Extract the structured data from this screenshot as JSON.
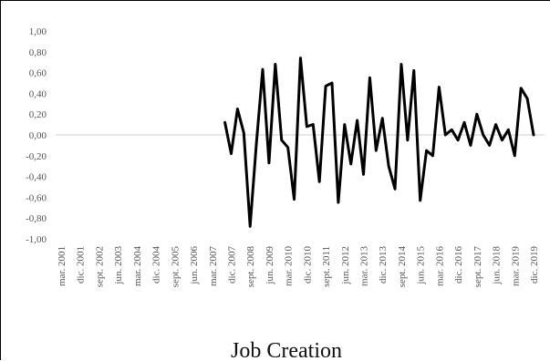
{
  "chart_data": {
    "type": "line",
    "title": "Job Creation",
    "xlabel": "",
    "ylabel": "",
    "ylim": [
      -1.0,
      1.0
    ],
    "grid": false,
    "legend": "none",
    "y_ticks": [
      "1,00",
      "0,80",
      "0,60",
      "0,40",
      "0,20",
      "0,00",
      "-0,20",
      "-0,40",
      "-0,60",
      "-0,80",
      "-1,00"
    ],
    "x_ticks": [
      "mar. 2001",
      "dic. 2001",
      "sept. 2002",
      "jun. 2003",
      "mar. 2004",
      "dic. 2004",
      "sept. 2005",
      "jun. 2006",
      "mar. 2007",
      "dic. 2007",
      "sept. 2008",
      "jun. 2009",
      "mar. 2010",
      "dic. 2010",
      "sept. 2011",
      "jun. 2012",
      "mar. 2013",
      "dic. 2013",
      "sept. 2014",
      "jun. 2015",
      "mar. 2016",
      "dic. 2016",
      "sept. 2017",
      "jun. 2018",
      "mar. 2019",
      "dic. 2019"
    ],
    "x": [
      "sept. 2007",
      "dic. 2007",
      "mar. 2008",
      "jun. 2008",
      "sept. 2008",
      "dic. 2008",
      "mar. 2009",
      "jun. 2009",
      "sept. 2009",
      "dic. 2009",
      "mar. 2010",
      "jun. 2010",
      "sept. 2010",
      "dic. 2010",
      "mar. 2011",
      "jun. 2011",
      "sept. 2011",
      "dic. 2011",
      "mar. 2012",
      "jun. 2012",
      "sept. 2012",
      "dic. 2012",
      "mar. 2013",
      "jun. 2013",
      "sept. 2013",
      "dic. 2013",
      "mar. 2014",
      "jun. 2014",
      "sept. 2014",
      "dic. 2014",
      "mar. 2015",
      "jun. 2015",
      "sept. 2015",
      "dic. 2015",
      "mar. 2016",
      "jun. 2016",
      "sept. 2016",
      "dic. 2016",
      "mar. 2017",
      "jun. 2017",
      "sept. 2017",
      "dic. 2017",
      "mar. 2018",
      "jun. 2018",
      "sept. 2018",
      "dic. 2018",
      "mar. 2019",
      "jun. 2019",
      "sept. 2019",
      "dic. 2019"
    ],
    "series": [
      {
        "values": [
          0.12,
          -0.18,
          0.25,
          0.02,
          -0.88,
          -0.08,
          0.63,
          -0.27,
          0.68,
          -0.05,
          -0.12,
          -0.62,
          0.74,
          0.08,
          0.1,
          -0.45,
          0.47,
          0.5,
          -0.65,
          0.1,
          -0.28,
          0.14,
          -0.38,
          0.55,
          -0.15,
          0.16,
          -0.3,
          -0.52,
          0.68,
          -0.05,
          0.62,
          -0.63,
          -0.15,
          -0.2,
          0.46,
          0.0,
          0.05,
          -0.05,
          0.12,
          -0.1,
          0.2,
          0.0,
          -0.1,
          0.1,
          -0.05,
          0.05,
          -0.2,
          0.45,
          0.35,
          0.0
        ]
      }
    ]
  }
}
